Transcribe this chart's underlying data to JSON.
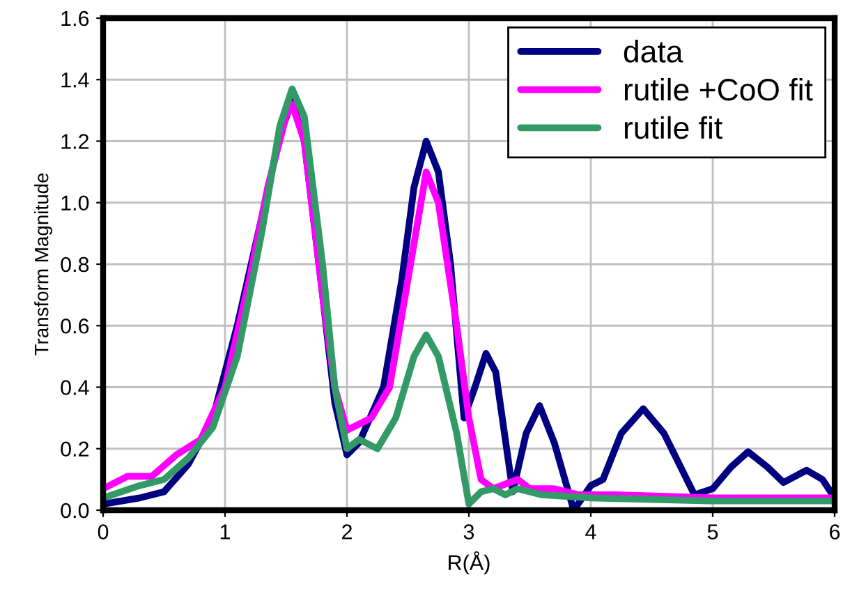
{
  "chart_data": {
    "type": "line",
    "xlabel": "R(Å)",
    "ylabel": "Transform Magnitude",
    "xlim": [
      0,
      6
    ],
    "ylim": [
      0,
      1.6
    ],
    "xticks": [
      0,
      1,
      2,
      3,
      4,
      5,
      6
    ],
    "yticks": [
      {
        "value": 0,
        "label": "0.0"
      },
      {
        "value": 0.2,
        "label": "0.2"
      },
      {
        "value": 0.4,
        "label": "0.4"
      },
      {
        "value": 0.6,
        "label": "0.6"
      },
      {
        "value": 0.8,
        "label": "0.8"
      },
      {
        "value": 1,
        "label": "1.0"
      },
      {
        "value": 1.2,
        "label": "1.2"
      },
      {
        "value": 1.4,
        "label": "1.4"
      },
      {
        "value": 1.6,
        "label": "1.6"
      }
    ],
    "grid": true,
    "legend": "top right",
    "marker": "none",
    "line_style": "solid",
    "series": [
      {
        "name": "data",
        "color": "#000080",
        "x": [
          0,
          0.3,
          0.5,
          0.7,
          0.9,
          1.1,
          1.3,
          1.45,
          1.55,
          1.65,
          1.8,
          1.9,
          2.0,
          2.1,
          2.3,
          2.45,
          2.55,
          2.65,
          2.75,
          2.85,
          2.96,
          3.05,
          3.14,
          3.22,
          3.36,
          3.47,
          3.58,
          3.7,
          3.86,
          4.0,
          4.1,
          4.25,
          4.43,
          4.6,
          4.85,
          5.0,
          5.15,
          5.29,
          5.45,
          5.58,
          5.77,
          5.9,
          6.0
        ],
        "values": [
          0.02,
          0.04,
          0.06,
          0.15,
          0.3,
          0.6,
          0.95,
          1.22,
          1.33,
          1.2,
          0.7,
          0.35,
          0.18,
          0.22,
          0.4,
          0.75,
          1.05,
          1.2,
          1.1,
          0.8,
          0.3,
          0.4,
          0.51,
          0.45,
          0.06,
          0.25,
          0.34,
          0.22,
          0.0,
          0.08,
          0.1,
          0.25,
          0.33,
          0.25,
          0.05,
          0.07,
          0.14,
          0.19,
          0.14,
          0.09,
          0.13,
          0.1,
          0.04
        ]
      },
      {
        "name": "rutile +CoO fit",
        "color": "#ff00ff",
        "x": [
          0,
          0.2,
          0.4,
          0.6,
          0.8,
          1.0,
          1.2,
          1.35,
          1.5,
          1.55,
          1.65,
          1.8,
          1.9,
          2.0,
          2.2,
          2.35,
          2.5,
          2.65,
          2.75,
          2.9,
          3.0,
          3.1,
          3.2,
          3.4,
          3.5,
          3.7,
          3.9,
          4.2,
          5.0,
          6.0
        ],
        "values": [
          0.07,
          0.11,
          0.11,
          0.18,
          0.23,
          0.4,
          0.75,
          1.05,
          1.28,
          1.32,
          1.2,
          0.7,
          0.4,
          0.26,
          0.3,
          0.4,
          0.75,
          1.1,
          1.0,
          0.6,
          0.3,
          0.1,
          0.07,
          0.1,
          0.07,
          0.07,
          0.05,
          0.05,
          0.04,
          0.04
        ]
      },
      {
        "name": "rutile fit",
        "color": "#339966",
        "x": [
          0,
          0.3,
          0.5,
          0.7,
          0.9,
          1.1,
          1.3,
          1.45,
          1.55,
          1.65,
          1.8,
          1.9,
          2.0,
          2.1,
          2.25,
          2.4,
          2.55,
          2.65,
          2.75,
          2.9,
          3.0,
          3.1,
          3.2,
          3.3,
          3.4,
          3.6,
          4.0,
          5.0,
          6.0
        ],
        "values": [
          0.04,
          0.08,
          0.1,
          0.17,
          0.27,
          0.5,
          0.9,
          1.25,
          1.37,
          1.28,
          0.8,
          0.4,
          0.2,
          0.23,
          0.2,
          0.3,
          0.5,
          0.57,
          0.5,
          0.25,
          0.02,
          0.06,
          0.07,
          0.05,
          0.07,
          0.05,
          0.04,
          0.03,
          0.03
        ]
      }
    ]
  }
}
